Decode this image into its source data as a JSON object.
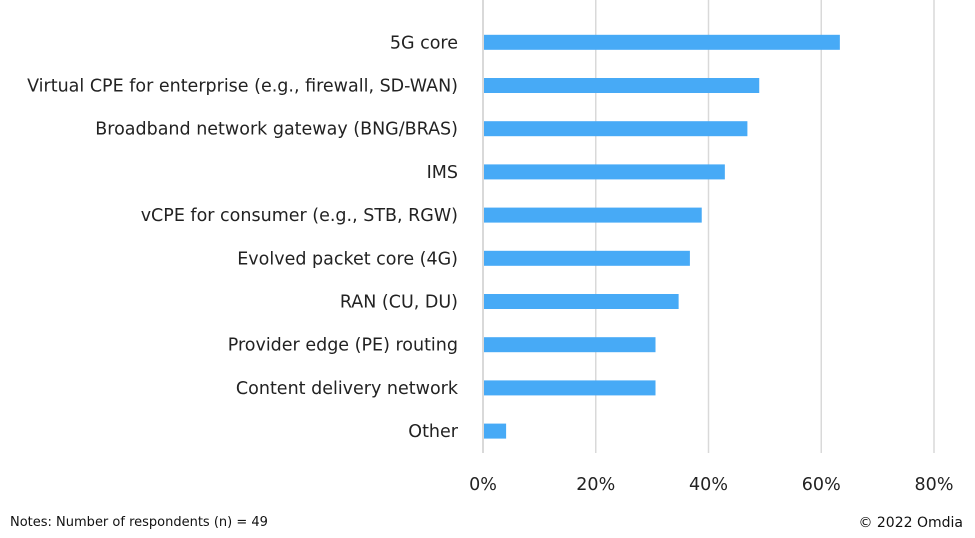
{
  "chart_data": {
    "type": "bar",
    "orientation": "horizontal",
    "categories": [
      "5G core",
      "Virtual CPE for enterprise (e.g., firewall, SD-WAN)",
      "Broadband network gateway (BNG/BRAS)",
      "IMS",
      "vCPE for consumer (e.g., STB, RGW)",
      "Evolved packet core (4G)",
      "RAN (CU, DU)",
      "Provider edge (PE) routing",
      "Content delivery network",
      "Other"
    ],
    "values": [
      63.3,
      49.0,
      46.9,
      42.9,
      38.8,
      36.7,
      34.7,
      30.6,
      30.6,
      4.1
    ],
    "xlim": [
      0,
      80
    ],
    "xticks": [
      "0%",
      "20%",
      "40%",
      "60%",
      "80%"
    ],
    "grid": true,
    "bar_color": "#47aaf6",
    "grid_color": "#d9d9d9"
  },
  "notes": "Notes: Number of respondents (n) = 49",
  "copyright": "© 2022 Omdia"
}
